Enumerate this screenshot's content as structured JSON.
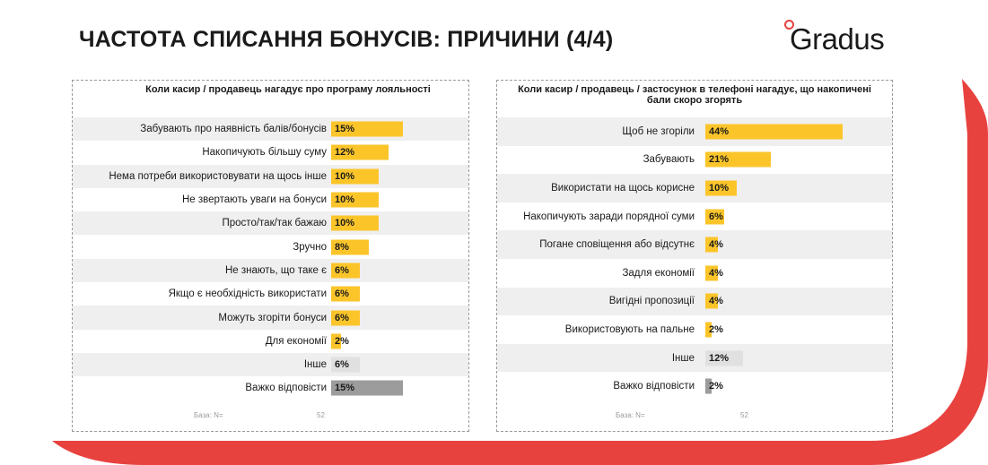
{
  "page": {
    "title": "ЧАСТОТА СПИСАННЯ БОНУСІВ: ПРИЧИНИ (4/4)",
    "logo_text": "Gradus",
    "colors": {
      "accent_red": "#e8423f",
      "bar_yellow": "#fbc52a",
      "bar_gray_light": "#e0e0e0",
      "bar_gray_dark": "#9c9c9c",
      "row_shade": "#efefef"
    }
  },
  "chart_data": [
    {
      "type": "bar",
      "orientation": "horizontal",
      "title": "Коли касир / продавець нагадує про програму лояльності",
      "categories": [
        "Забувають про наявність балів/бонусів",
        "Накопичують більшу суму",
        "Нема потреби використовувати на щось інше",
        "Не звертають уваги на бонуси",
        "Просто/так/так бажаю",
        "Зручно",
        "Не знають, що таке є",
        "Якщо є необхідність використати",
        "Можуть згоріти бонуси",
        "Для економії",
        "Інше",
        "Важко відповісти"
      ],
      "values": [
        15,
        12,
        10,
        10,
        10,
        8,
        6,
        6,
        6,
        2,
        6,
        15
      ],
      "value_labels": [
        "15%",
        "12%",
        "10%",
        "10%",
        "10%",
        "8%",
        "6%",
        "6%",
        "6%",
        "2%",
        "6%",
        "15%"
      ],
      "bar_styles": [
        "yellow",
        "yellow",
        "yellow",
        "yellow",
        "yellow",
        "yellow",
        "yellow",
        "yellow",
        "yellow",
        "yellow",
        "gray-light",
        "gray-dark"
      ],
      "base_label": "База: N=",
      "base_value": "52"
    },
    {
      "type": "bar",
      "orientation": "horizontal",
      "title": "Коли касир / продавець / застосунок в телефоні нагадує, що накопичені бали скоро згорять",
      "categories": [
        "Щоб не згоріли",
        "Забувають",
        "Використати на щось корисне",
        "Накопичують заради порядної суми",
        "Погане сповіщення або відсутнє",
        "Задля економії",
        "Вигідні пропозиції",
        "Використовують на пальне",
        "Інше",
        "Важко відповісти"
      ],
      "values": [
        44,
        21,
        10,
        6,
        4,
        4,
        4,
        2,
        12,
        2
      ],
      "value_labels": [
        "44%",
        "21%",
        "10%",
        "6%",
        "4%",
        "4%",
        "4%",
        "2%",
        "12%",
        "2%"
      ],
      "bar_styles": [
        "yellow",
        "yellow",
        "yellow",
        "yellow",
        "yellow",
        "yellow",
        "yellow",
        "yellow",
        "gray-light",
        "gray-dark"
      ],
      "base_label": "База: N=",
      "base_value": "52"
    }
  ]
}
